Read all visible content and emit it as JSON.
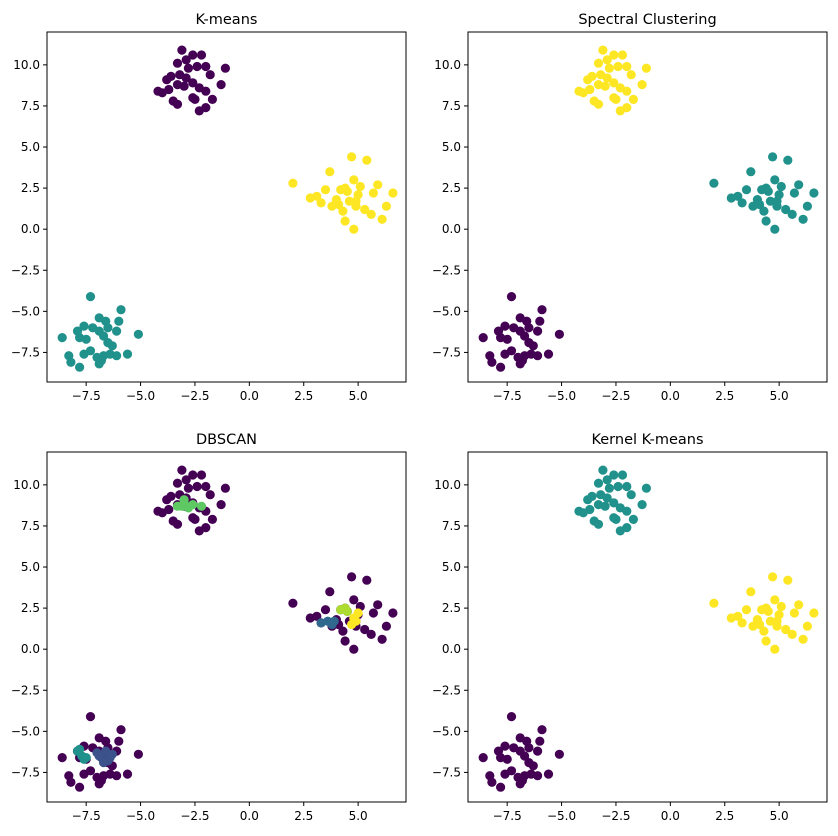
{
  "chart_data": [
    {
      "type": "scatter",
      "title": "K-means",
      "xlabel": "",
      "ylabel": "",
      "xlim": [
        -9.3,
        7.2
      ],
      "ylim": [
        -9.3,
        12.0
      ],
      "xticks": [
        -7.5,
        -5.0,
        -2.5,
        0.0,
        2.5,
        5.0
      ],
      "xtick_labels": [
        "−7.5",
        "−5.0",
        "−2.5",
        "0.0",
        "2.5",
        "5.0"
      ],
      "yticks": [
        -7.5,
        -5.0,
        -2.5,
        0.0,
        2.5,
        5.0,
        7.5,
        10.0
      ],
      "ytick_labels": [
        "−7.5",
        "−5.0",
        "−2.5",
        "0.0",
        "2.5",
        "5.0",
        "7.5",
        "10.0"
      ],
      "colors": {
        "top": "#440154",
        "right": "#fde725",
        "bottom": "#21918c"
      },
      "points_ref": "shared"
    },
    {
      "type": "scatter",
      "title": "Spectral Clustering",
      "xlabel": "",
      "ylabel": "",
      "xlim": [
        -9.3,
        7.2
      ],
      "ylim": [
        -9.3,
        12.0
      ],
      "xticks": [
        -7.5,
        -5.0,
        -2.5,
        0.0,
        2.5,
        5.0
      ],
      "xtick_labels": [
        "−7.5",
        "−5.0",
        "−2.5",
        "0.0",
        "2.5",
        "5.0"
      ],
      "yticks": [
        -7.5,
        -5.0,
        -2.5,
        0.0,
        2.5,
        5.0,
        7.5,
        10.0
      ],
      "ytick_labels": [
        "−7.5",
        "−5.0",
        "−2.5",
        "0.0",
        "2.5",
        "5.0",
        "7.5",
        "10.0"
      ],
      "colors": {
        "top": "#fde725",
        "right": "#21918c",
        "bottom": "#440154"
      },
      "points_ref": "shared"
    },
    {
      "type": "scatter",
      "title": "DBSCAN",
      "xlabel": "",
      "ylabel": "",
      "xlim": [
        -9.3,
        7.2
      ],
      "ylim": [
        -9.3,
        12.0
      ],
      "xticks": [
        -7.5,
        -5.0,
        -2.5,
        0.0,
        2.5,
        5.0
      ],
      "xtick_labels": [
        "−7.5",
        "−5.0",
        "−2.5",
        "0.0",
        "2.5",
        "5.0"
      ],
      "yticks": [
        -7.5,
        -5.0,
        -2.5,
        0.0,
        2.5,
        5.0,
        7.5,
        10.0
      ],
      "ytick_labels": [
        "−7.5",
        "−5.0",
        "−2.5",
        "0.0",
        "2.5",
        "5.0",
        "7.5",
        "10.0"
      ],
      "noise_color": "#440154",
      "dense_groups": [
        {
          "color": "#5ec962",
          "points": [
            [
              -3.3,
              8.7
            ],
            [
              -3.0,
              8.9
            ],
            [
              -2.8,
              8.6
            ],
            [
              -3.1,
              8.7
            ],
            [
              -2.6,
              8.8
            ],
            [
              -2.2,
              8.7
            ],
            [
              -3.0,
              9.1
            ]
          ]
        },
        {
          "color": "#31688e",
          "points": [
            [
              3.3,
              1.6
            ],
            [
              3.6,
              1.7
            ],
            [
              3.8,
              1.5
            ],
            [
              3.9,
              1.7
            ]
          ]
        },
        {
          "color": "#addc30",
          "points": [
            [
              4.2,
              2.4
            ],
            [
              4.5,
              2.3
            ],
            [
              4.4,
              2.5
            ]
          ]
        },
        {
          "color": "#fde725",
          "points": [
            [
              4.7,
              1.5
            ],
            [
              4.9,
              1.7
            ],
            [
              5.0,
              2.2
            ],
            [
              4.8,
              1.9
            ]
          ]
        },
        {
          "color": "#3b528b",
          "points": [
            [
              -7.0,
              -6.3
            ],
            [
              -6.8,
              -6.6
            ],
            [
              -6.6,
              -6.2
            ],
            [
              -6.5,
              -6.8
            ],
            [
              -6.3,
              -6.4
            ],
            [
              -6.7,
              -6.9
            ],
            [
              -6.9,
              -6.5
            ],
            [
              -6.4,
              -6.6
            ]
          ]
        },
        {
          "color": "#21918c",
          "points": [
            [
              -7.9,
              -6.2
            ],
            [
              -7.7,
              -6.5
            ],
            [
              -7.6,
              -6.7
            ],
            [
              -7.8,
              -6.1
            ],
            [
              -7.5,
              -6.6
            ]
          ]
        }
      ],
      "points_ref": "shared"
    },
    {
      "type": "scatter",
      "title": "Kernel K-means",
      "xlabel": "",
      "ylabel": "",
      "xlim": [
        -9.3,
        7.2
      ],
      "ylim": [
        -9.3,
        12.0
      ],
      "xticks": [
        -7.5,
        -5.0,
        -2.5,
        0.0,
        2.5,
        5.0
      ],
      "xtick_labels": [
        "−7.5",
        "−5.0",
        "−2.5",
        "0.0",
        "2.5",
        "5.0"
      ],
      "yticks": [
        -7.5,
        -5.0,
        -2.5,
        0.0,
        2.5,
        5.0,
        7.5,
        10.0
      ],
      "ytick_labels": [
        "−7.5",
        "−5.0",
        "−2.5",
        "0.0",
        "2.5",
        "5.0",
        "7.5",
        "10.0"
      ],
      "colors": {
        "top": "#21918c",
        "right": "#fde725",
        "bottom": "#440154"
      },
      "points_ref": "shared"
    }
  ],
  "shared_points": {
    "top": [
      [
        -3.1,
        10.9
      ],
      [
        -2.6,
        10.6
      ],
      [
        -2.2,
        10.6
      ],
      [
        -2.9,
        10.3
      ],
      [
        -3.3,
        10.1
      ],
      [
        -3.6,
        9.3
      ],
      [
        -3.2,
        9.4
      ],
      [
        -2.8,
        9.8
      ],
      [
        -2.4,
        9.9
      ],
      [
        -2.0,
        9.9
      ],
      [
        -1.1,
        9.8
      ],
      [
        -1.8,
        9.4
      ],
      [
        -3.8,
        9.1
      ],
      [
        -3.3,
        8.8
      ],
      [
        -3.0,
        8.7
      ],
      [
        -2.6,
        8.9
      ],
      [
        -2.3,
        8.6
      ],
      [
        -2.0,
        8.4
      ],
      [
        -1.3,
        8.8
      ],
      [
        -4.2,
        8.4
      ],
      [
        -4.0,
        8.3
      ],
      [
        -3.5,
        7.8
      ],
      [
        -3.3,
        7.6
      ],
      [
        -2.5,
        7.9
      ],
      [
        -2.3,
        7.2
      ],
      [
        -2.0,
        7.4
      ],
      [
        -1.7,
        7.9
      ],
      [
        -2.6,
        8.0
      ],
      [
        -3.7,
        8.5
      ],
      [
        -2.9,
        9.2
      ]
    ],
    "right": [
      [
        2.0,
        2.8
      ],
      [
        2.8,
        1.9
      ],
      [
        3.1,
        2.0
      ],
      [
        3.3,
        1.6
      ],
      [
        3.5,
        2.4
      ],
      [
        3.7,
        3.5
      ],
      [
        3.8,
        1.4
      ],
      [
        4.0,
        1.8
      ],
      [
        4.1,
        1.5
      ],
      [
        4.2,
        2.4
      ],
      [
        4.3,
        1.1
      ],
      [
        4.4,
        0.5
      ],
      [
        4.5,
        2.3
      ],
      [
        4.6,
        1.7
      ],
      [
        4.7,
        4.4
      ],
      [
        4.8,
        3.0
      ],
      [
        4.8,
        0.0
      ],
      [
        4.9,
        1.4
      ],
      [
        5.0,
        2.1
      ],
      [
        5.1,
        2.6
      ],
      [
        5.3,
        1.2
      ],
      [
        5.4,
        4.2
      ],
      [
        5.6,
        0.9
      ],
      [
        5.7,
        2.2
      ],
      [
        5.9,
        2.7
      ],
      [
        6.1,
        0.6
      ],
      [
        6.3,
        1.4
      ],
      [
        6.6,
        2.2
      ],
      [
        4.4,
        2.5
      ],
      [
        4.9,
        1.7
      ]
    ],
    "bottom": [
      [
        -7.3,
        -4.1
      ],
      [
        -5.9,
        -4.9
      ],
      [
        -6.9,
        -5.4
      ],
      [
        -6.6,
        -5.6
      ],
      [
        -7.6,
        -5.9
      ],
      [
        -7.9,
        -6.2
      ],
      [
        -7.2,
        -6.0
      ],
      [
        -6.9,
        -6.2
      ],
      [
        -6.5,
        -6.0
      ],
      [
        -6.0,
        -5.6
      ],
      [
        -6.1,
        -6.2
      ],
      [
        -5.1,
        -6.4
      ],
      [
        -8.6,
        -6.6
      ],
      [
        -7.8,
        -6.6
      ],
      [
        -7.5,
        -6.7
      ],
      [
        -6.7,
        -6.5
      ],
      [
        -6.5,
        -6.9
      ],
      [
        -6.3,
        -7.1
      ],
      [
        -7.3,
        -7.4
      ],
      [
        -8.3,
        -7.7
      ],
      [
        -7.6,
        -7.6
      ],
      [
        -7.0,
        -7.8
      ],
      [
        -6.7,
        -7.7
      ],
      [
        -6.4,
        -7.6
      ],
      [
        -6.1,
        -7.7
      ],
      [
        -5.6,
        -7.6
      ],
      [
        -8.2,
        -8.1
      ],
      [
        -7.8,
        -8.4
      ],
      [
        -6.8,
        -8.0
      ],
      [
        -6.9,
        -8.2
      ]
    ]
  }
}
